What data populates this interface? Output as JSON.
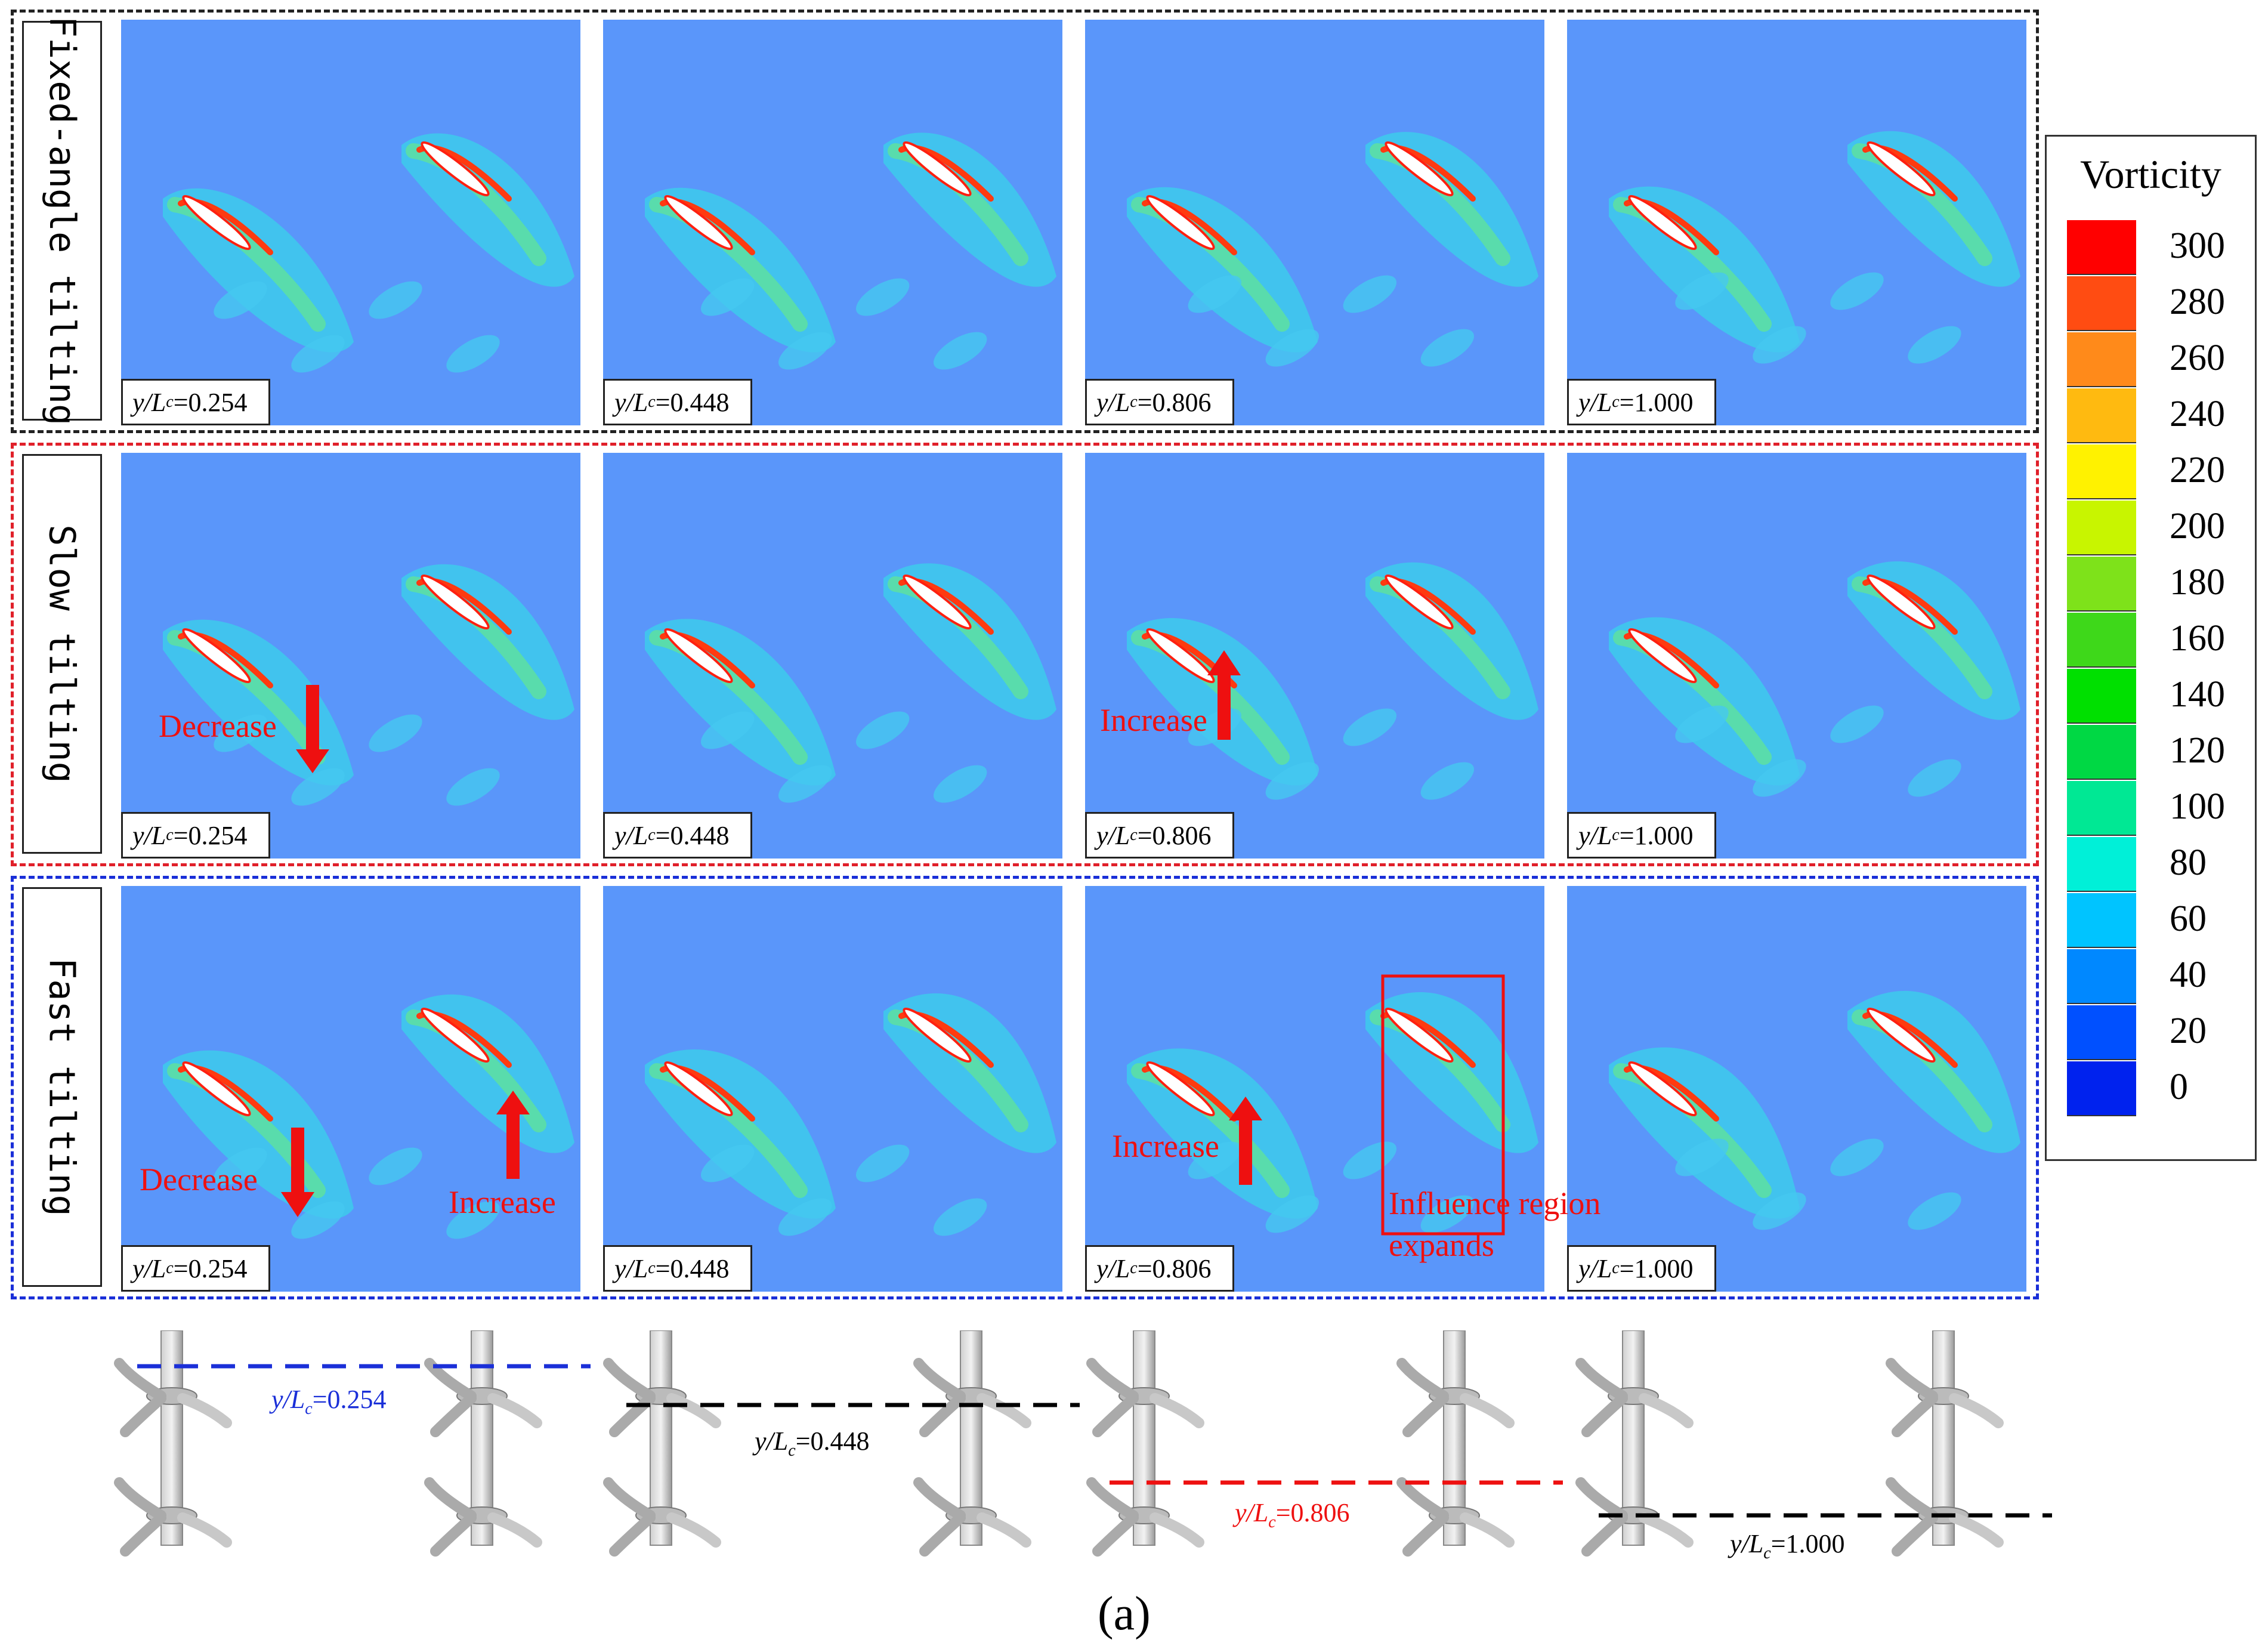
{
  "rows": [
    {
      "label": "Fixed-angle tilting",
      "border_color": "#222222"
    },
    {
      "label": "Slow tilting",
      "border_color": "#e0202a"
    },
    {
      "label": "Fast tilting",
      "border_color": "#1a2fd8"
    }
  ],
  "positions": [
    {
      "var": "y/",
      "sym": "L",
      "sub": "c",
      "value": "=0.254"
    },
    {
      "var": "y/",
      "sym": "L",
      "sub": "c",
      "value": "=0.448"
    },
    {
      "var": "y/",
      "sym": "L",
      "sub": "c",
      "value": "=0.806"
    },
    {
      "var": "y/",
      "sym": "L",
      "sub": "c",
      "value": "=1.000"
    }
  ],
  "annotations": {
    "slow_decrease": "Decrease",
    "slow_increase": "Increase",
    "fast_decrease": "Decrease",
    "fast_increase_1": "Increase",
    "fast_increase_2": "Increase",
    "influence_line1": "Influence region",
    "influence_line2": "expands"
  },
  "legend": {
    "title": "Vorticity",
    "ticks": [
      "300",
      "280",
      "260",
      "240",
      "220",
      "200",
      "180",
      "160",
      "140",
      "120",
      "100",
      "80",
      "60",
      "40",
      "20",
      "0"
    ],
    "colors": [
      "#ff0000",
      "#ff4c12",
      "#ff8a1a",
      "#ffba10",
      "#fff200",
      "#c8f500",
      "#7ee21a",
      "#3ed81a",
      "#00e000",
      "#00d844",
      "#00e894",
      "#00f0d8",
      "#00c4ff",
      "#0088ff",
      "#0050ff",
      "#0022ee"
    ]
  },
  "heights": [
    {
      "var": "y/",
      "sym": "L",
      "sub": "c",
      "value": "=0.254",
      "color": "#1a2fd8"
    },
    {
      "var": "y/",
      "sym": "L",
      "sub": "c",
      "value": "=0.448",
      "color": "#000000"
    },
    {
      "var": "y/",
      "sym": "L",
      "sub": "c",
      "value": "=0.806",
      "color": "#ee1010"
    },
    {
      "var": "y/",
      "sym": "L",
      "sub": "c",
      "value": "=1.000",
      "color": "#000000"
    }
  ],
  "caption": "(a)",
  "colors": {
    "background_fluid": "#5a96fa",
    "annotation": "#ee1010"
  }
}
